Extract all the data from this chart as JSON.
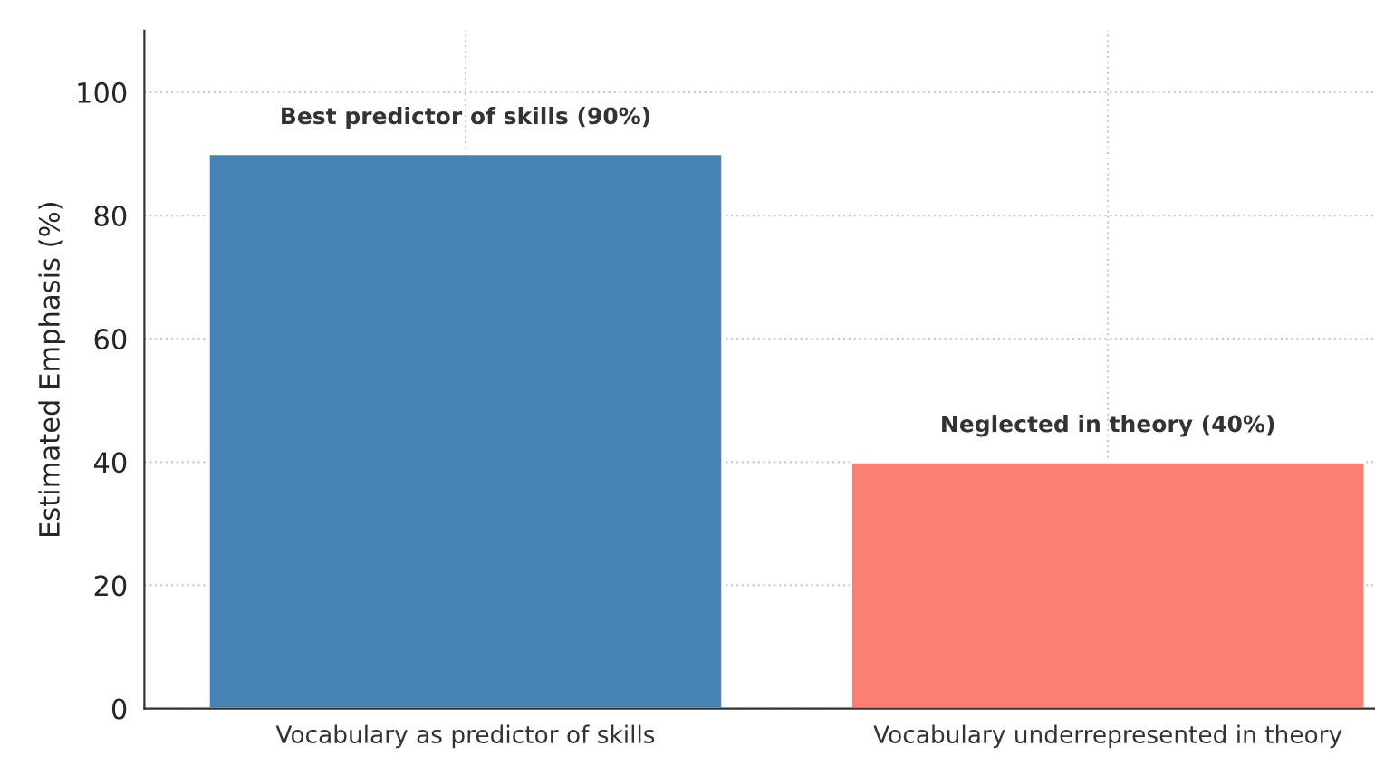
{
  "chart_data": {
    "type": "bar",
    "ylabel": "Estimated Emphasis (%)",
    "categories": [
      "Vocabulary as predictor of skills",
      "Vocabulary underrepresented in theory"
    ],
    "values": [
      90,
      40
    ],
    "colors": [
      "#4682b4",
      "#fa8072"
    ],
    "ylim": [
      0,
      110
    ],
    "yticks": [
      0,
      20,
      40,
      60,
      80,
      100
    ],
    "grid": true,
    "annotations": [
      {
        "text": "Best predictor of skills (90%)",
        "x": "Vocabulary as predictor of skills",
        "y": 90
      },
      {
        "text": "Neglected in theory (40%)",
        "x": "Vocabulary underrepresented in theory",
        "y": 40
      }
    ]
  }
}
